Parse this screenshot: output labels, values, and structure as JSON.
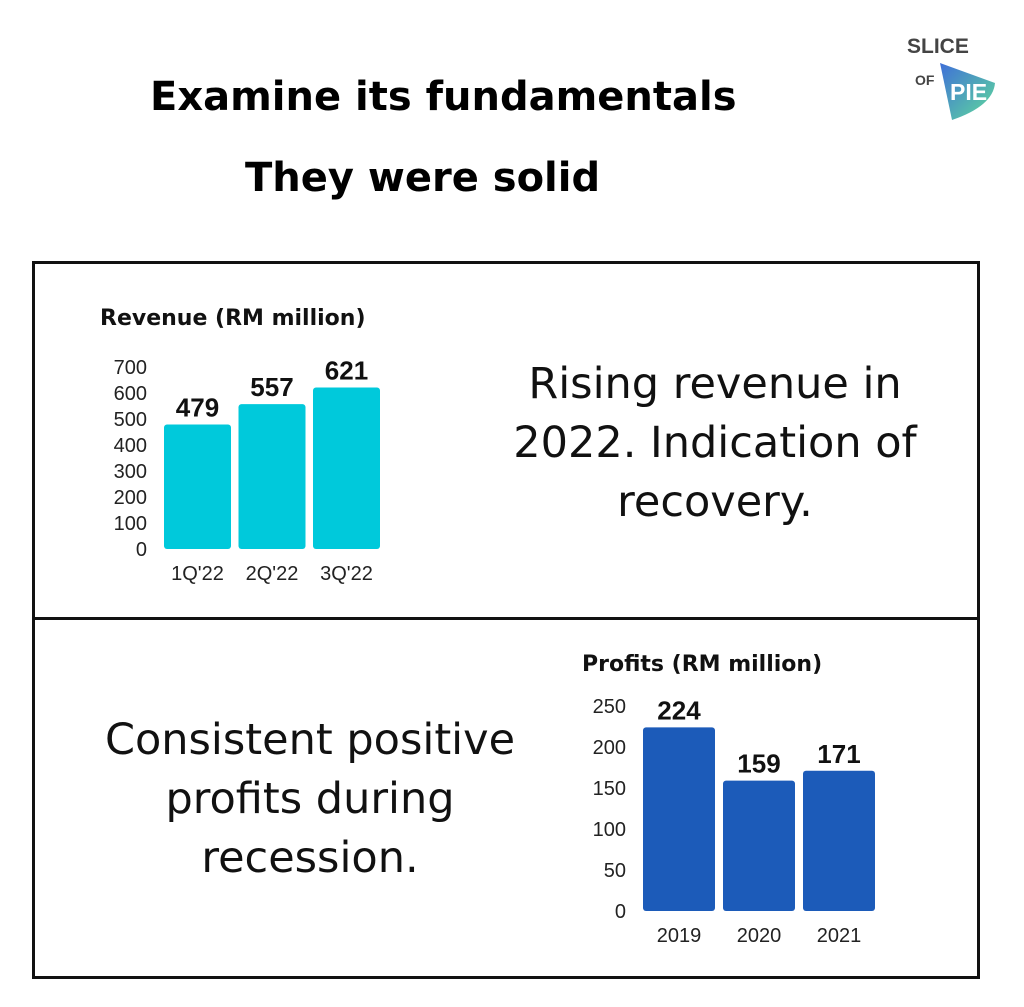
{
  "header": {
    "title": "Examine its fundamentals",
    "subtitle": "They were solid"
  },
  "logo": {
    "text_top": "SLICE",
    "text_mid": "OF",
    "text_pie": "PIE"
  },
  "top_panel": {
    "text": "Rising revenue in 2022. Indication of recovery."
  },
  "bottom_panel": {
    "text": "Consistent positive profits during recession."
  },
  "colors": {
    "revenue": "#00C9DB",
    "profits": "#1C5BB9"
  },
  "chart_data": [
    {
      "type": "bar",
      "title": "Revenue (RM million)",
      "categories": [
        "1Q'22",
        "2Q'22",
        "3Q'22"
      ],
      "values": [
        479,
        557,
        621
      ],
      "ylim": [
        0,
        700
      ],
      "yticks": [
        0,
        100,
        200,
        300,
        400,
        500,
        600,
        700
      ],
      "xlabel": "",
      "ylabel": ""
    },
    {
      "type": "bar",
      "title": "Profits (RM million)",
      "categories": [
        "2019",
        "2020",
        "2021"
      ],
      "values": [
        224,
        159,
        171
      ],
      "ylim": [
        0,
        250
      ],
      "yticks": [
        0,
        50,
        100,
        150,
        200,
        250
      ],
      "xlabel": "",
      "ylabel": ""
    }
  ]
}
